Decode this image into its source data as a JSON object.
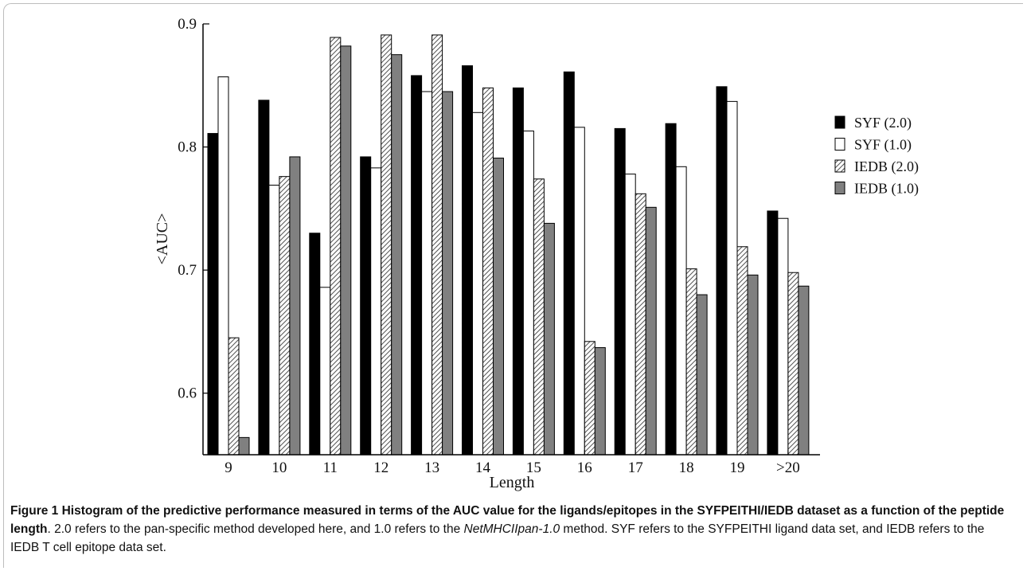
{
  "chart_data": {
    "type": "bar",
    "categories": [
      "9",
      "10",
      "11",
      "12",
      "13",
      "14",
      "15",
      "16",
      "17",
      "18",
      "19",
      ">20"
    ],
    "series": [
      {
        "name": "SYF (2.0)",
        "values": [
          0.811,
          0.838,
          0.73,
          0.792,
          0.858,
          0.866,
          0.848,
          0.861,
          0.815,
          0.819,
          0.849,
          0.748
        ]
      },
      {
        "name": "SYF (1.0)",
        "values": [
          0.857,
          0.769,
          0.686,
          0.783,
          0.845,
          0.828,
          0.813,
          0.816,
          0.778,
          0.784,
          0.837,
          0.742
        ]
      },
      {
        "name": "IEDB (2.0)",
        "values": [
          0.645,
          0.776,
          0.889,
          0.891,
          0.891,
          0.848,
          0.774,
          0.642,
          0.762,
          0.701,
          0.719,
          0.698
        ]
      },
      {
        "name": "IEDB (1.0)",
        "values": [
          0.564,
          0.792,
          0.882,
          0.875,
          0.845,
          0.791,
          0.738,
          0.637,
          0.751,
          0.68,
          0.696,
          0.687
        ]
      }
    ],
    "ylim": [
      0.55,
      0.9
    ],
    "yticks": [
      "0.6",
      "0.7",
      "0.8",
      "0.9"
    ],
    "xlabel": "Length",
    "ylabel": "<AUC>",
    "legend_position": "top-right",
    "series_styles": [
      "solid-black",
      "white",
      "diagonal-hatch",
      "gray"
    ],
    "colors": {
      "black": "#000000",
      "gray": "#808080",
      "hatch": "#555555"
    }
  },
  "caption": {
    "label": "Figure 1",
    "title": "Histogram of the predictive performance measured in terms of the AUC value for the ligands/epitopes in the SYFPEITHI/IEDB dataset as a function of the peptide length",
    "text_before_method": ". 2.0 refers to the pan-specific method developed here, and 1.0 refers to the ",
    "method_name": "NetMHCIIpan-1.0",
    "text_after_method": " method. SYF refers to the SYFPEITHI ligand data set, and IEDB refers to the IEDB T cell epitope data set."
  }
}
